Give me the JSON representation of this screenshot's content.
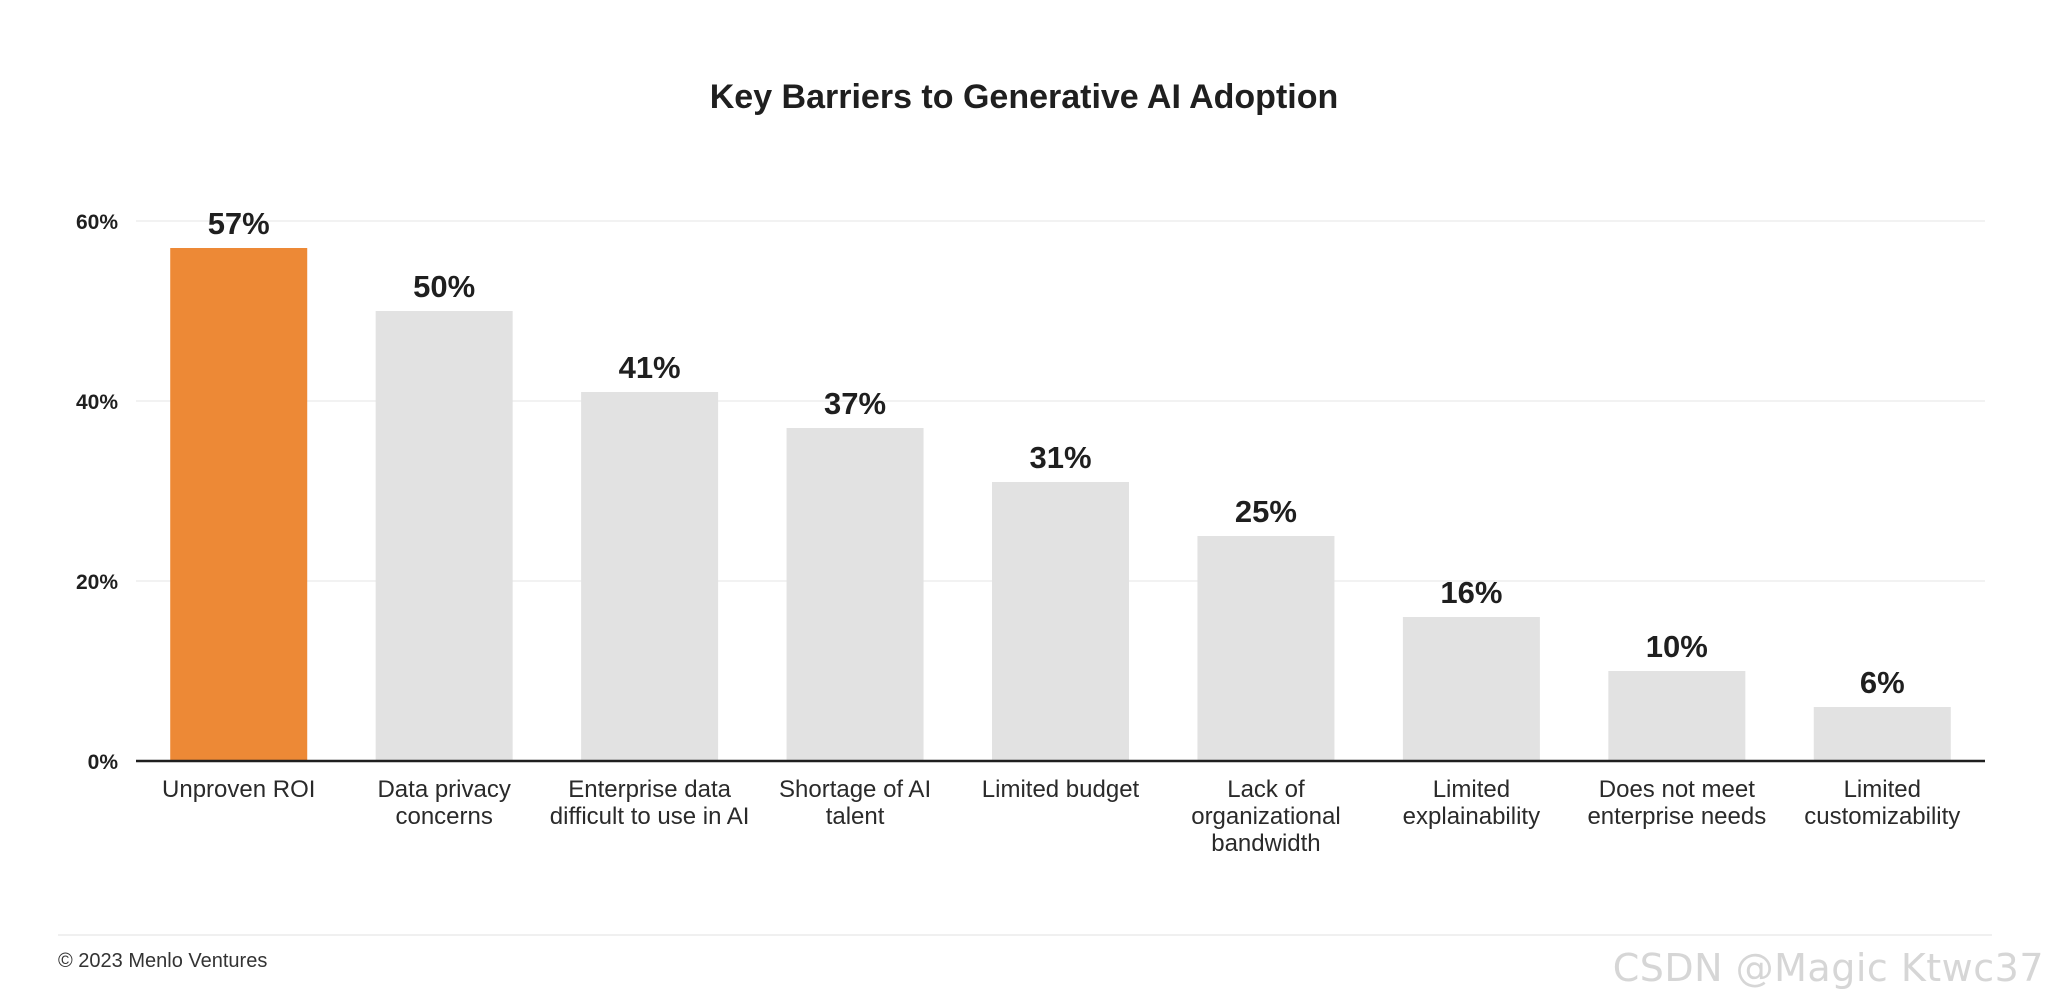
{
  "chart_data": {
    "type": "bar",
    "title": "Key Barriers to Generative AI Adoption",
    "xlabel": "",
    "ylabel": "",
    "ylim": [
      0,
      60
    ],
    "yticks": [
      0,
      20,
      40,
      60
    ],
    "ytick_labels": [
      "0%",
      "20%",
      "40%",
      "60%"
    ],
    "grid": true,
    "categories": [
      [
        "Unproven ROI"
      ],
      [
        "Data privacy",
        "concerns"
      ],
      [
        "Enterprise data",
        "difficult to use in AI"
      ],
      [
        "Shortage of AI",
        "talent"
      ],
      [
        "Limited budget"
      ],
      [
        "Lack of",
        "organizational",
        "bandwidth"
      ],
      [
        "Limited",
        "explainability"
      ],
      [
        "Does not meet",
        "enterprise needs"
      ],
      [
        "Limited",
        "customizability"
      ]
    ],
    "values": [
      57,
      50,
      41,
      37,
      31,
      25,
      16,
      10,
      6
    ],
    "value_labels": [
      "57%",
      "50%",
      "41%",
      "37%",
      "31%",
      "25%",
      "16%",
      "10%",
      "6%"
    ],
    "colors": {
      "highlight": "#ED8936",
      "default": "#E2E2E2",
      "axis": "#1f1f1f",
      "grid": "#F2F2F2"
    },
    "highlight_index": 0
  },
  "footer": {
    "copyright": "© 2023 Menlo Ventures",
    "watermark": "CSDN @Magic Ktwc37"
  }
}
